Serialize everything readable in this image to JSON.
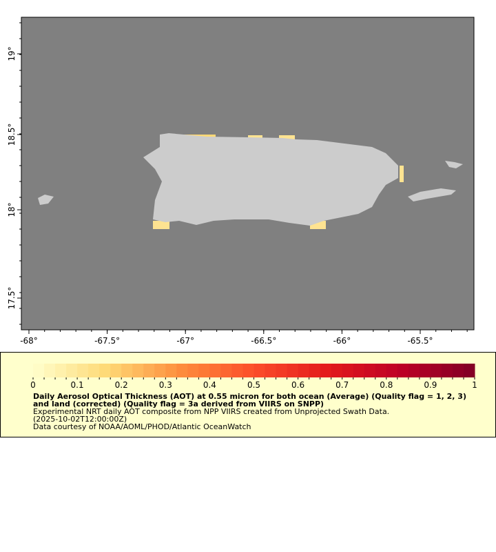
{
  "map": {
    "x_ticks": [
      "-68°",
      "-67.5°",
      "-67°",
      "-66.5°",
      "-66°",
      "-65.5°"
    ],
    "y_ticks": [
      "19°",
      "18.5°",
      "18°",
      "17.5°"
    ],
    "colors": {
      "ocean": "#808080",
      "land": "#cccccc",
      "legend_bg": "#ffffcc"
    }
  },
  "legend": {
    "colorbar_ticks": [
      "0",
      "0.1",
      "0.2",
      "0.3",
      "0.4",
      "0.5",
      "0.6",
      "0.7",
      "0.8",
      "0.9",
      "1"
    ],
    "colorbar_range": [
      0,
      1
    ],
    "colormap": [
      "#ffffcc",
      "#fed976",
      "#fd8d3c",
      "#fc4e2a",
      "#e31a1c",
      "#bd0026",
      "#800026"
    ],
    "title": "Daily Aerosol Optical Thickness (AOT) at 0.55 micron for both ocean (Average) (Quality flag = 1, 2, 3) and land (corrected) (Quality flag = 3a derived from VIIRS on SNPP)",
    "subtitle": "Experimental NRT daily AOT composite from NPP VIIRS created from Unprojected Swath Data.",
    "time": "(2025-10-02T12:00:00Z)",
    "credit": "Data courtesy of NOAA/AOML/PHOD/Atlantic OceanWatch"
  }
}
